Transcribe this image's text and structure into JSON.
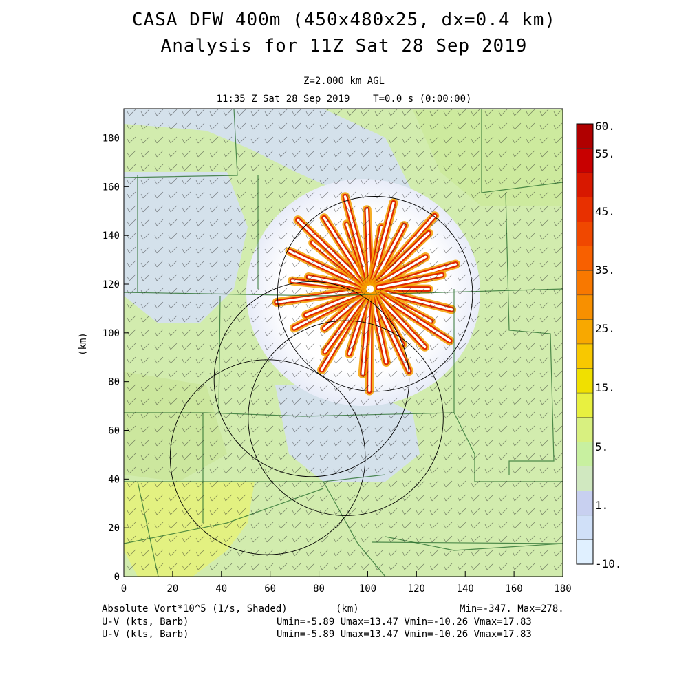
{
  "header": {
    "title": "CASA DFW 400m (450x480x25, dx=0.4 km)",
    "subtitle": "Analysis for 11Z Sat 28 Sep 2019",
    "level": "Z=2.000 km AGL",
    "valid": "11:35 Z Sat 28 Sep 2019    T=0.0 s (0:00:00)"
  },
  "footer": {
    "field": "Absolute Vort*10^5 (1/s, Shaded)",
    "xunit": "(km)",
    "minmax": "Min=-347. Max=278.",
    "barb1_label": "U-V (kts, Barb)",
    "barb1_stats": "Umin=-5.89 Umax=13.47 Vmin=-10.26 Vmax=17.83",
    "barb2_label": "U-V (kts, Barb)",
    "barb2_stats": "Umin=-5.89 Umax=13.47 Vmin=-10.26 Vmax=17.83"
  },
  "chart_data": {
    "type": "heatmap",
    "xlabel": "",
    "ylabel": "(km)",
    "xlim": [
      0,
      180
    ],
    "ylim": [
      0,
      192
    ],
    "xticks": [
      "0",
      "20",
      "40",
      "60",
      "80",
      "100",
      "120",
      "140",
      "160",
      "180"
    ],
    "yticks": [
      "0",
      "20",
      "40",
      "60",
      "80",
      "100",
      "120",
      "140",
      "160",
      "180"
    ],
    "colorbar": {
      "labels": [
        "60.",
        "55.",
        "45.",
        "35.",
        "25.",
        "15.",
        "5.",
        "1.",
        "-10."
      ],
      "colors": [
        "#b00000",
        "#c80000",
        "#d81800",
        "#e83000",
        "#f04800",
        "#f86000",
        "#f87800",
        "#f89000",
        "#f8a800",
        "#f8c800",
        "#f0e000",
        "#e8f040",
        "#d8f080",
        "#c8f0a0",
        "#d0e8c0",
        "#c8d0f0",
        "#d0e0f8",
        "#e0f0ff"
      ]
    },
    "radar_rings": [
      {
        "cx": 103,
        "cy": 116,
        "r": 40
      },
      {
        "cx": 77,
        "cy": 81,
        "r": 40
      },
      {
        "cx": 91,
        "cy": 65,
        "r": 40
      },
      {
        "cx": 59,
        "cy": 49,
        "r": 40
      }
    ],
    "high_vorticity_center": [
      101,
      118
    ]
  }
}
